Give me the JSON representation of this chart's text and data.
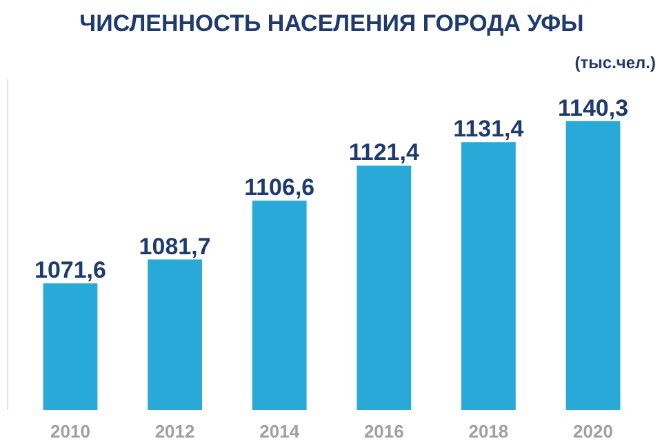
{
  "chart_data": {
    "type": "bar",
    "title": "ЧИСЛЕННОСТЬ НАСЕЛЕНИЯ ГОРОДА УФЫ",
    "subtitle": "(тыс.чел.)",
    "categories": [
      "2010",
      "2012",
      "2014",
      "2016",
      "2018",
      "2020"
    ],
    "values": [
      1071.6,
      1081.7,
      1106.6,
      1121.4,
      1131.4,
      1140.3
    ],
    "value_labels": [
      "1071,6",
      "1081,7",
      "1106,6",
      "1121,4",
      "1131,4",
      "1140,3"
    ],
    "color": "#29a9d8",
    "ylim": [
      1018,
      1158
    ]
  }
}
